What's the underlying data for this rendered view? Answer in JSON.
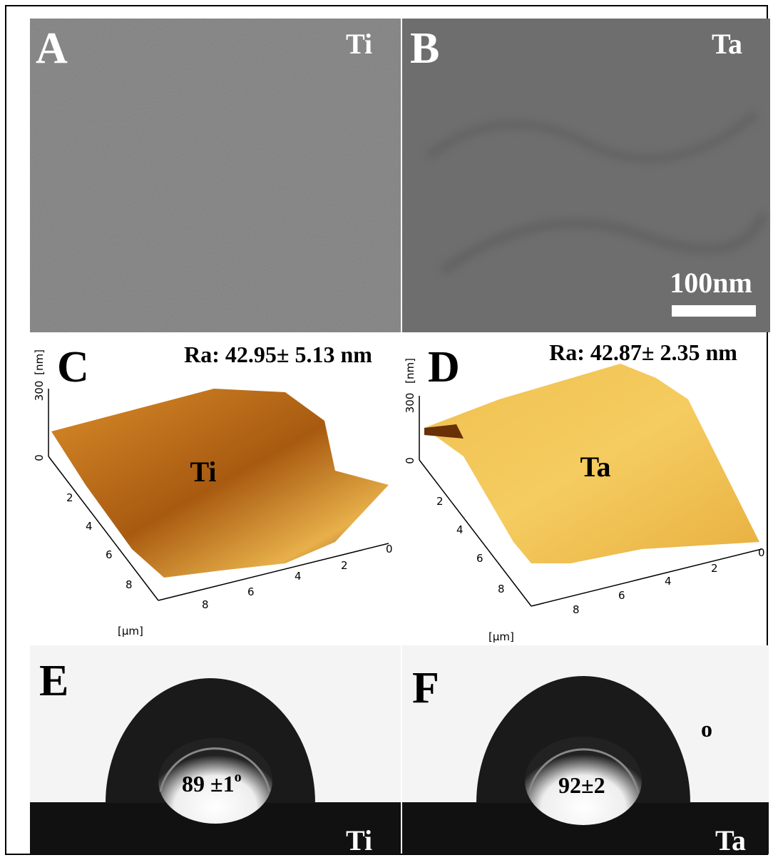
{
  "panels": [
    {
      "label": "A",
      "material": "Ti"
    },
    {
      "label": "B",
      "material": "Ta",
      "scale_bar": "100nm"
    },
    {
      "label": "C",
      "roughness": "Ra: 42.95± 5.13 nm",
      "material": "Ti",
      "z_axis": {
        "ticks": [
          "300",
          "0"
        ],
        "unit": "[nm]"
      },
      "left_axis": {
        "ticks": [
          "2",
          "4",
          "6",
          "8"
        ]
      },
      "bottom_axis": {
        "ticks": [
          "8",
          "6",
          "4",
          "2",
          "0"
        ]
      },
      "xy_unit": "[µm]"
    },
    {
      "label": "D",
      "roughness": "Ra: 42.87± 2.35 nm",
      "material": "Ta",
      "z_axis": {
        "ticks": [
          "300",
          "0"
        ],
        "unit": "[nm]"
      },
      "left_axis": {
        "ticks": [
          "2",
          "4",
          "6",
          "8"
        ]
      },
      "bottom_axis": {
        "ticks": [
          "8",
          "6",
          "4",
          "2",
          "0"
        ]
      },
      "xy_unit": "[µm]"
    },
    {
      "label": "E",
      "contact_angle": "89 ±1",
      "degree": "o",
      "material": "Ti"
    },
    {
      "label": "F",
      "contact_angle": "92±2",
      "degree": "o",
      "material": "Ta"
    }
  ]
}
